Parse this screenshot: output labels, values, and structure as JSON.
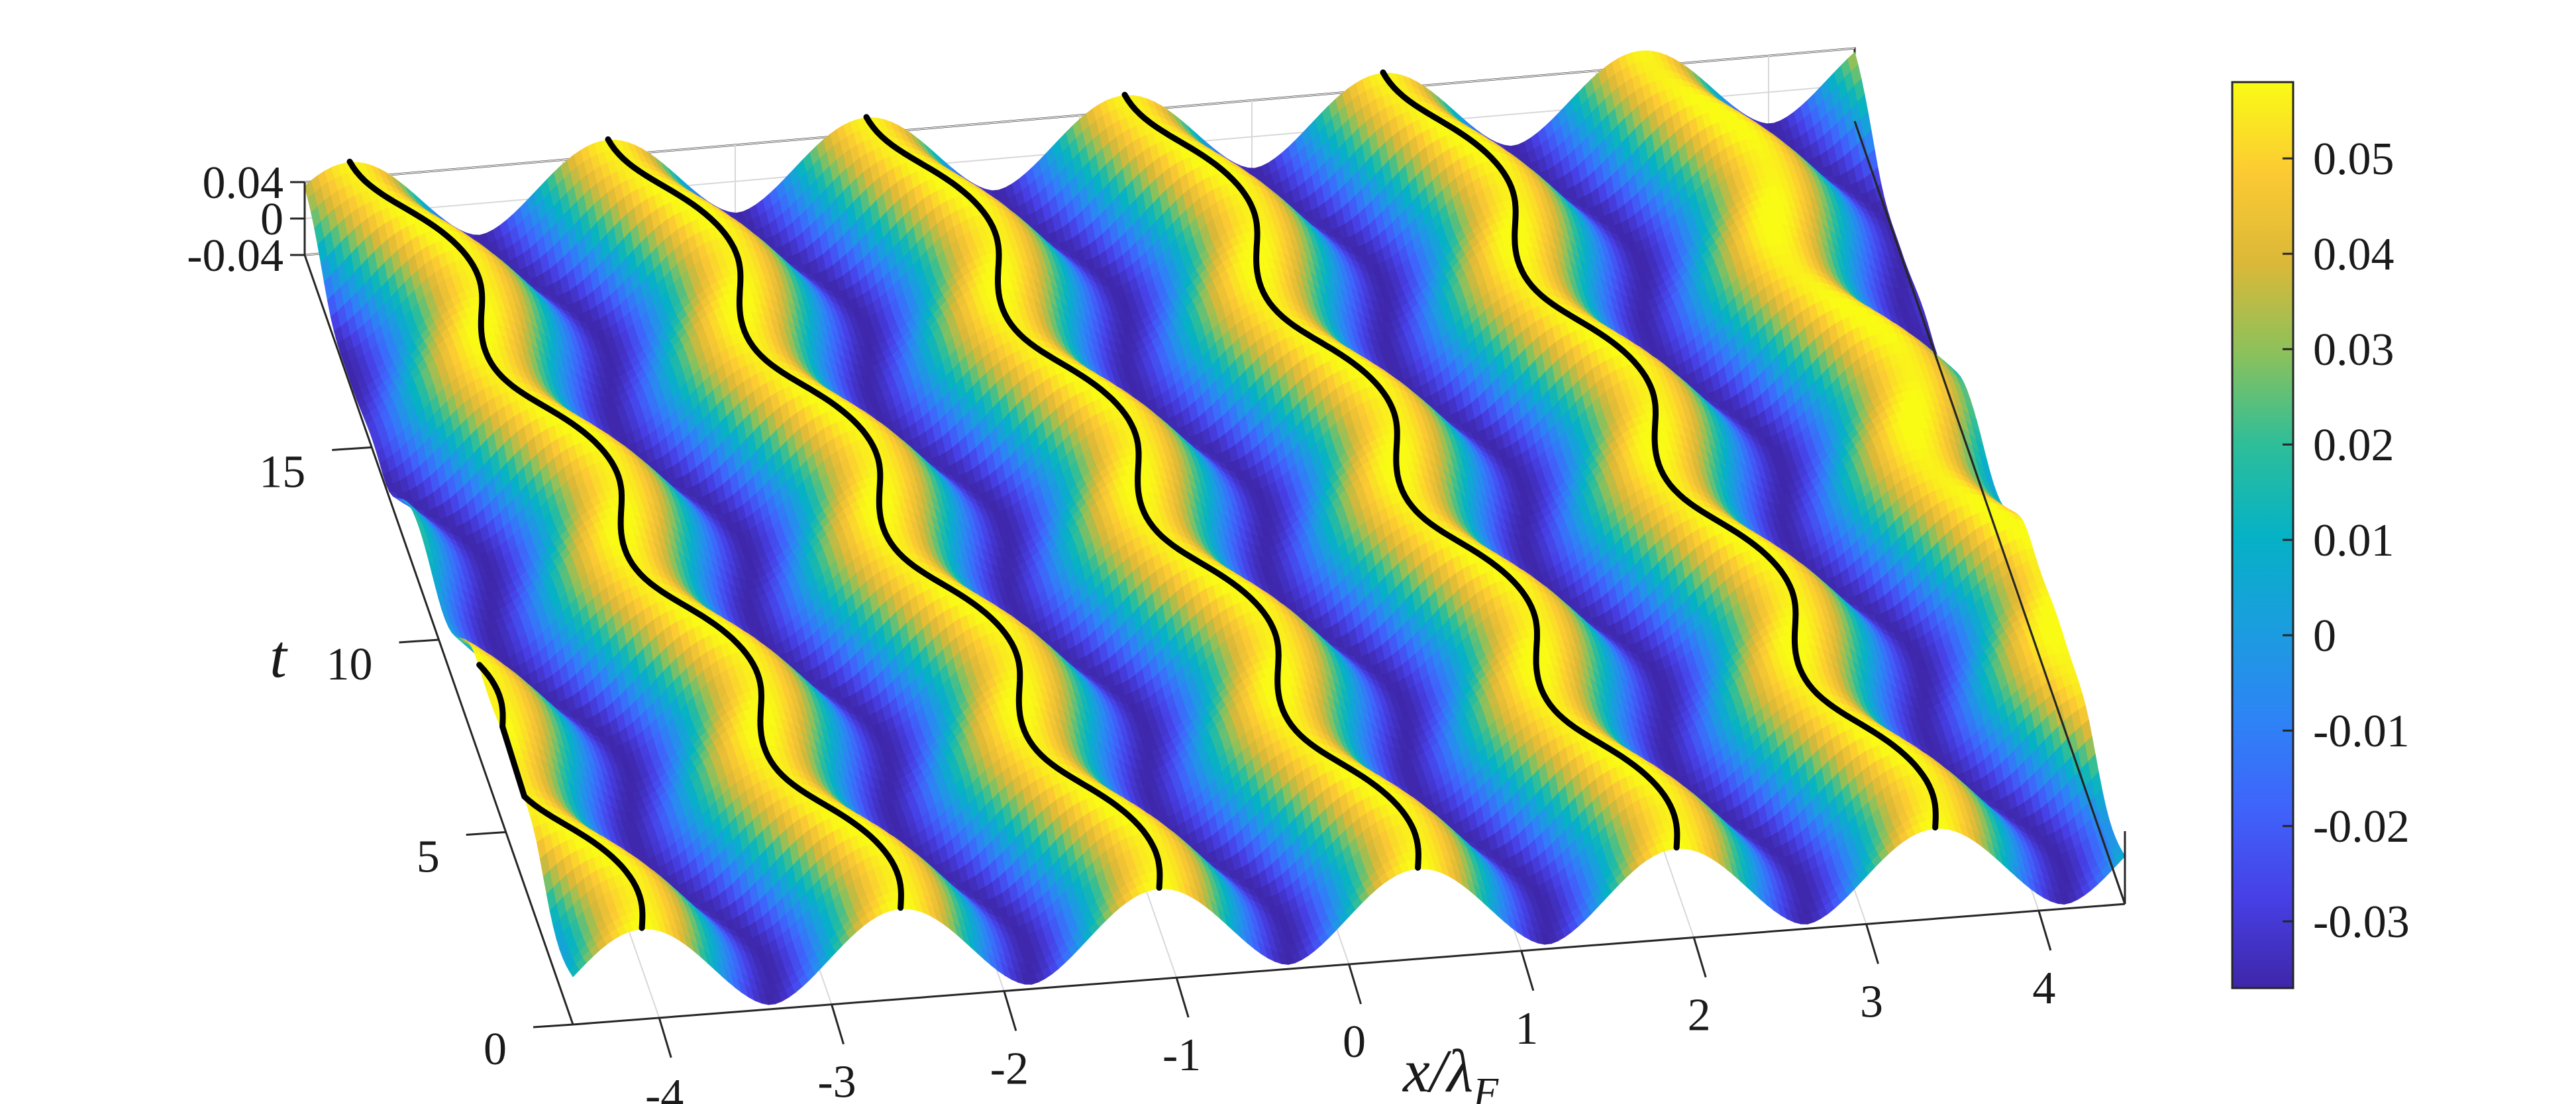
{
  "chart_data": {
    "type": "surface",
    "xlabel": "x/λ",
    "xlabel_subscript": "F",
    "ylabel": "t",
    "x_ticks": [
      "-4",
      "-3",
      "-2",
      "-1",
      "0",
      "1",
      "2",
      "3",
      "4"
    ],
    "y_ticks": [
      "0",
      "5",
      "10",
      "15"
    ],
    "z_ticks": [
      "-0.04",
      "0",
      "0.04"
    ],
    "xlim": [
      -4.5,
      4.5
    ],
    "ylim": [
      0,
      20
    ],
    "zlim": [
      -0.04,
      0.04
    ],
    "grid": true,
    "surface": {
      "wavelength_x": 1.5,
      "crest_positions_at_t0": [
        -4.1,
        -2.6,
        -1.1,
        0.4,
        1.9,
        3.4
      ],
      "amplitude_range": [
        -0.035,
        0.058
      ],
      "oscillation_period_t": 5.3,
      "lateral_wobble": 0.14
    },
    "trajectories": {
      "color": "#000000",
      "count": 6,
      "x_at_t0": [
        -4.1,
        -2.6,
        -1.1,
        0.4,
        1.9,
        3.4
      ],
      "t_range": [
        0,
        20
      ]
    },
    "colorbar": {
      "colormap": "parula",
      "range": [
        -0.037,
        0.058
      ],
      "ticks": [
        "0.05",
        "0.04",
        "0.03",
        "0.02",
        "0.01",
        "0",
        "-0.01",
        "-0.02",
        "-0.03"
      ],
      "tick_values": [
        0.05,
        0.04,
        0.03,
        0.02,
        0.01,
        0,
        -0.01,
        -0.02,
        -0.03
      ],
      "low_color": "#3e26a8",
      "high_color": "#f9fb15"
    }
  }
}
